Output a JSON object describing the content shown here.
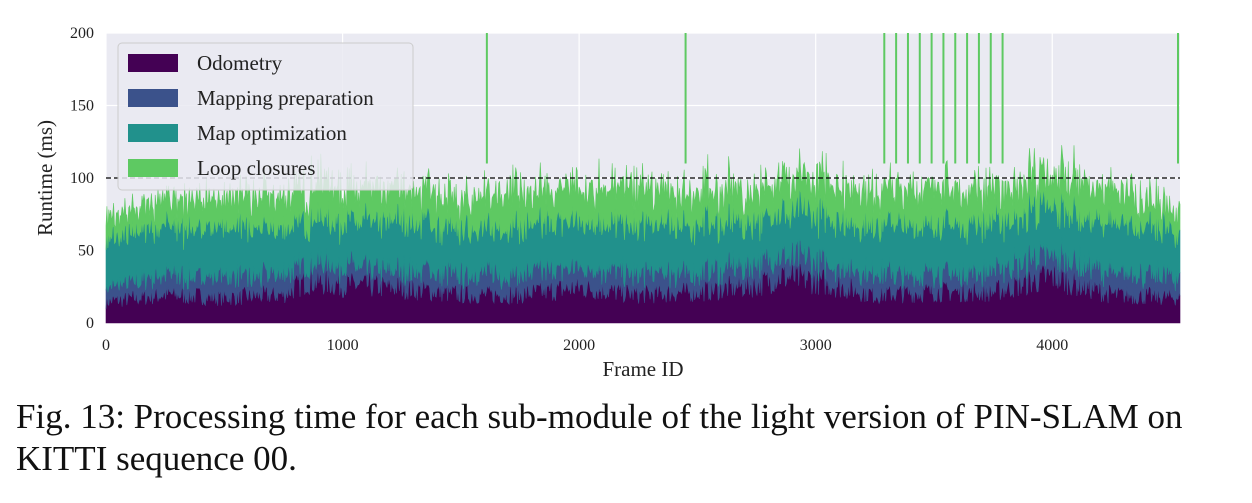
{
  "chart_data": {
    "type": "area",
    "stacked": true,
    "xlabel": "Frame ID",
    "ylabel": "Runtime (ms)",
    "xlim": [
      0,
      4540
    ],
    "ylim": [
      0,
      200
    ],
    "xticks": [
      0,
      1000,
      2000,
      3000,
      4000
    ],
    "yticks": [
      0,
      50,
      100,
      150,
      200
    ],
    "grid": true,
    "background": "#eaeaf2",
    "legend_position": "top-left",
    "reference_line": {
      "y": 100,
      "style": "dashed",
      "color": "#000000"
    },
    "series": [
      {
        "name": "Odometry",
        "color": "#440154",
        "x": [
          0,
          250,
          500,
          750,
          850,
          1000,
          1250,
          1500,
          1750,
          2000,
          2250,
          2500,
          2750,
          2850,
          3000,
          3250,
          3500,
          3750,
          4000,
          4250,
          4540
        ],
        "values": [
          15,
          20,
          18,
          20,
          30,
          27,
          25,
          20,
          20,
          25,
          20,
          22,
          27,
          33,
          30,
          20,
          22,
          22,
          33,
          20,
          18
        ]
      },
      {
        "name": "Mapping preparation",
        "color": "#3b528b",
        "x": [
          0,
          250,
          500,
          750,
          850,
          1000,
          1250,
          1500,
          1750,
          2000,
          2250,
          2500,
          2750,
          2850,
          3000,
          3250,
          3500,
          3750,
          4000,
          4250,
          4540
        ],
        "values": [
          10,
          13,
          14,
          14,
          12,
          12,
          12,
          14,
          14,
          13,
          14,
          13,
          15,
          13,
          14,
          14,
          13,
          14,
          15,
          15,
          15
        ]
      },
      {
        "name": "Map optimization",
        "color": "#21918c",
        "x": [
          0,
          250,
          500,
          750,
          850,
          1000,
          1250,
          1500,
          1750,
          2000,
          2250,
          2500,
          2750,
          2850,
          3000,
          3250,
          3500,
          3750,
          4000,
          4250,
          4540
        ],
        "values": [
          33,
          33,
          33,
          32,
          30,
          32,
          35,
          30,
          33,
          32,
          34,
          33,
          30,
          30,
          32,
          34,
          34,
          34,
          32,
          34,
          32
        ]
      },
      {
        "name": "Loop closures",
        "color": "#5ec962",
        "x": [
          0,
          250,
          500,
          750,
          850,
          1000,
          1250,
          1500,
          1750,
          2000,
          2250,
          2500,
          2750,
          2850,
          3000,
          3250,
          3500,
          3750,
          4000,
          4250,
          4540
        ],
        "values": [
          12,
          17,
          20,
          22,
          23,
          22,
          22,
          20,
          25,
          22,
          24,
          22,
          23,
          22,
          22,
          22,
          25,
          22,
          22,
          22,
          13
        ]
      }
    ],
    "loop_closure_spikes_x": [
      1610,
      2450,
      3290,
      3340,
      3390,
      3440,
      3490,
      3540,
      3590,
      3640,
      3690,
      3740,
      3790,
      4540
    ]
  },
  "caption": {
    "text": "Fig. 13: Processing time for each sub-module of the light version of PIN-SLAM on KITTI sequence 00."
  }
}
